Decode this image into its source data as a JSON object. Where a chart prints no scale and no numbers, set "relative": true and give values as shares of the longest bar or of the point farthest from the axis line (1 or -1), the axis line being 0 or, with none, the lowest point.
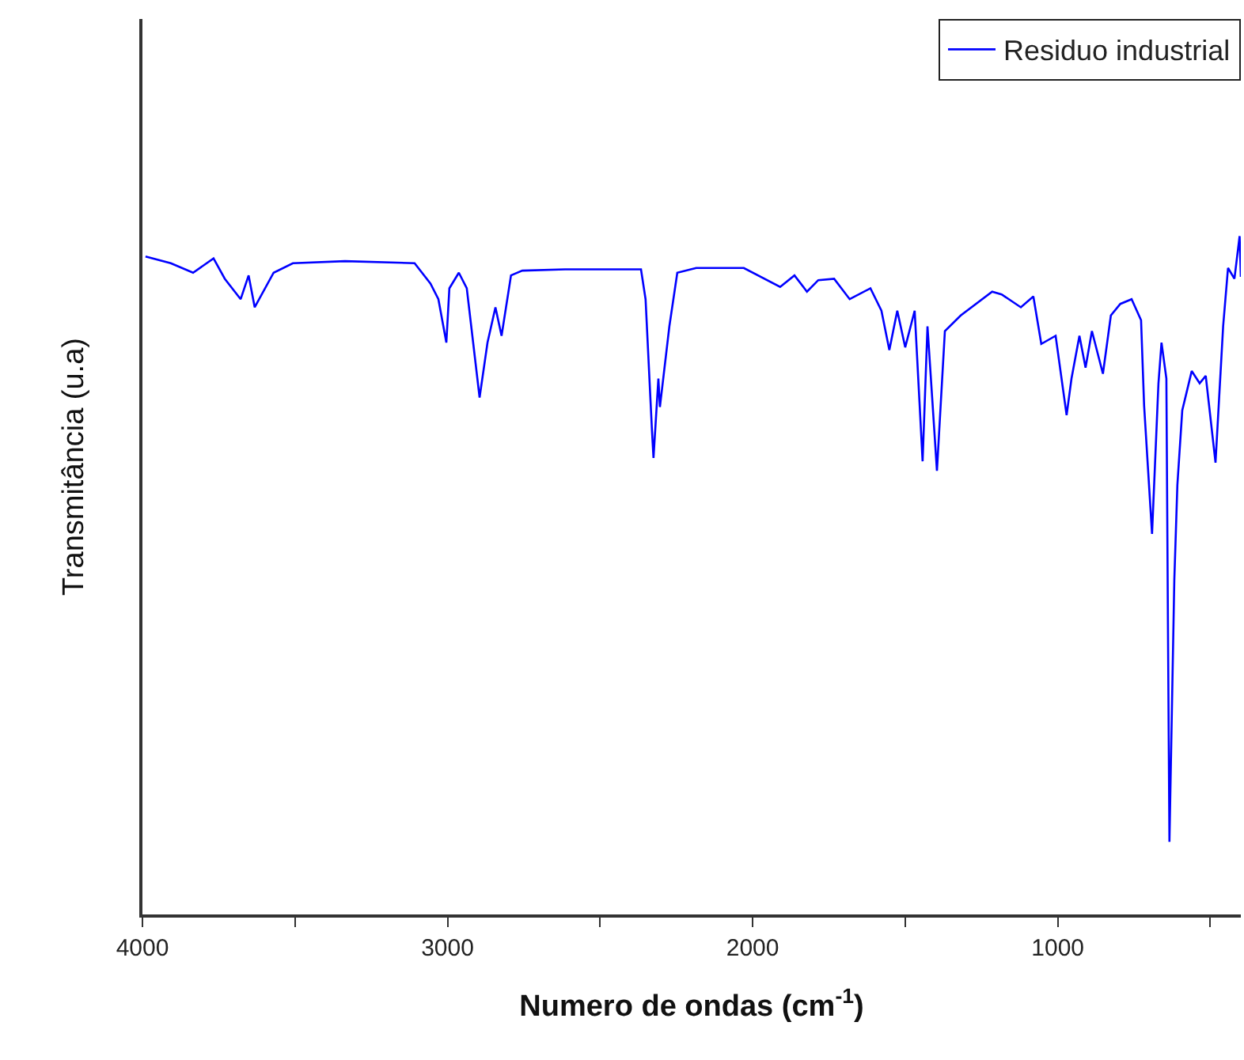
{
  "chart_data": {
    "type": "line",
    "relative": true,
    "xlabel": "Numero de ondas (cm$^{-1}$)",
    "ylabel": "Transmitância (u.a)",
    "xlim": [
      4000,
      400
    ],
    "xticks": [
      4000,
      {
        "value": 3500,
        "label": null
      },
      3000,
      {
        "value": 2500,
        "label": null
      },
      2000,
      {
        "value": 1500,
        "label": null
      },
      1000,
      {
        "value": 500,
        "label": null
      }
    ],
    "legend": "top right",
    "marker": "none",
    "line_style": "solid",
    "series": [
      {
        "name": "Residuo industrial",
        "color": "#0000ff",
        "x": [
          3990,
          3907,
          3834,
          3767,
          3730,
          3678,
          3652,
          3632,
          3570,
          3507,
          3336,
          3108,
          3056,
          3030,
          3004,
          2994,
          2963,
          2937,
          2895,
          2869,
          2843,
          2823,
          2792,
          2755,
          2615,
          2366,
          2351,
          2330,
          2325,
          2309,
          2304,
          2273,
          2247,
          2185,
          2029,
          1910,
          1863,
          1822,
          1785,
          1733,
          1682,
          1614,
          1578,
          1552,
          1526,
          1500,
          1469,
          1443,
          1427,
          1396,
          1370,
          1318,
          1215,
          1184,
          1121,
          1080,
          1054,
          1007,
          971,
          955,
          929,
          909,
          888,
          852,
          826,
          795,
          758,
          727,
          717,
          691,
          670,
          660,
          644,
          639,
          634,
          618,
          608,
          592,
          561,
          535,
          515,
          483,
          458,
          442,
          421,
          404,
          400
        ],
        "values": [
          0.97,
          0.96,
          0.946,
          0.967,
          0.937,
          0.907,
          0.942,
          0.895,
          0.946,
          0.96,
          0.963,
          0.96,
          0.93,
          0.907,
          0.843,
          0.923,
          0.946,
          0.923,
          0.762,
          0.843,
          0.895,
          0.853,
          0.942,
          0.949,
          0.951,
          0.951,
          0.907,
          0.713,
          0.673,
          0.79,
          0.748,
          0.867,
          0.946,
          0.953,
          0.953,
          0.925,
          0.942,
          0.918,
          0.935,
          0.937,
          0.907,
          0.923,
          0.89,
          0.832,
          0.89,
          0.836,
          0.89,
          0.668,
          0.867,
          0.654,
          0.86,
          0.883,
          0.918,
          0.914,
          0.895,
          0.911,
          0.841,
          0.853,
          0.736,
          0.79,
          0.853,
          0.806,
          0.86,
          0.797,
          0.883,
          0.9,
          0.907,
          0.876,
          0.75,
          0.561,
          0.783,
          0.843,
          0.79,
          0.432,
          0.107,
          0.493,
          0.633,
          0.743,
          0.801,
          0.783,
          0.794,
          0.666,
          0.867,
          0.953,
          0.937,
          1.0,
          0.94
        ]
      }
    ]
  }
}
